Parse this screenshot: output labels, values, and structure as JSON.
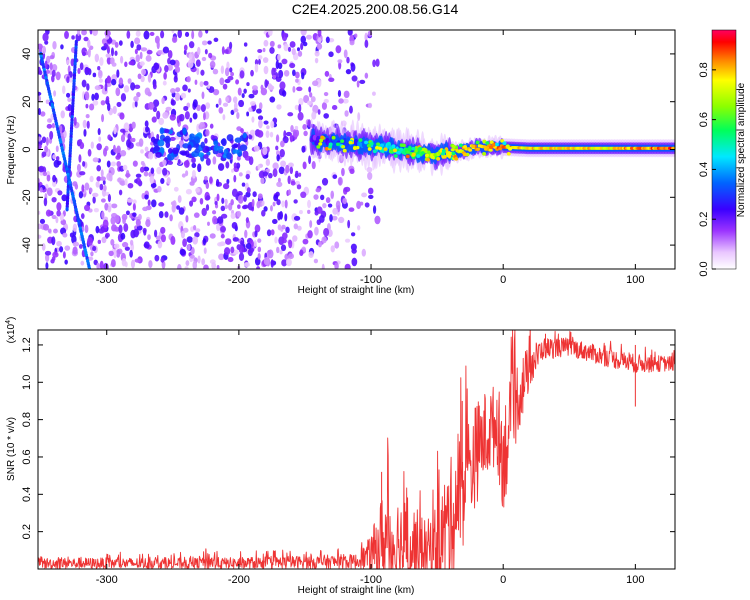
{
  "title": "C2E4.2025.200.08.56.G14",
  "chart_data": [
    {
      "type": "heatmap",
      "xlabel": "Height of straight line (km)",
      "ylabel": "Frequency (Hz)",
      "xlim": [
        -352,
        130
      ],
      "ylim": [
        -50,
        50
      ],
      "x_ticks": [
        -300,
        -200,
        -100,
        0,
        100
      ],
      "y_ticks": [
        -40,
        -20,
        0,
        20,
        40
      ],
      "colorbar": {
        "label": "Normalized spectral amplitude",
        "range": [
          0,
          0.96
        ],
        "ticks": [
          0.0,
          0.2,
          0.4,
          0.6,
          0.8
        ]
      },
      "features": {
        "noise_region_x": [
          -352,
          -110
        ],
        "steep_track": {
          "x_start": -350,
          "y_start": 40,
          "x_end": -313,
          "y_end": -50
        },
        "secondary_track": {
          "x_start": -323,
          "y_start": 45,
          "x_end": -330,
          "y_end": -25
        },
        "cluster_center": {
          "x": -230,
          "y": 2
        },
        "main_band": [
          {
            "x": -145,
            "y": 4,
            "amp": 0.2
          },
          {
            "x": -130,
            "y": 3,
            "amp": 0.3
          },
          {
            "x": -110,
            "y": 2,
            "amp": 0.35
          },
          {
            "x": -90,
            "y": 1,
            "amp": 0.45
          },
          {
            "x": -70,
            "y": -1,
            "amp": 0.6
          },
          {
            "x": -50,
            "y": -2,
            "amp": 0.75
          },
          {
            "x": -35,
            "y": -1,
            "amp": 0.8
          },
          {
            "x": -20,
            "y": 1,
            "amp": 0.85
          },
          {
            "x": 0,
            "y": 1,
            "amp": 0.85
          },
          {
            "x": 20,
            "y": 0.5,
            "amp": 0.8
          },
          {
            "x": 50,
            "y": 0.5,
            "amp": 0.8
          },
          {
            "x": 80,
            "y": 0.5,
            "amp": 0.8
          },
          {
            "x": 100,
            "y": 0.5,
            "amp": 0.85
          },
          {
            "x": 130,
            "y": 0.5,
            "amp": 0.9
          }
        ]
      }
    },
    {
      "type": "line",
      "xlabel": "Height of straight line (km)",
      "ylabel": "SNR (10 * v/v)",
      "scale_label": "(x10",
      "scale_exponent": "4",
      "xlim": [
        -352,
        130
      ],
      "ylim": [
        0,
        1.28
      ],
      "x_ticks": [
        -300,
        -200,
        -100,
        0,
        100
      ],
      "y_ticks": [
        0.2,
        0.4,
        0.6,
        0.8,
        1.0,
        1.2
      ],
      "color": "#ee3333",
      "envelope": [
        {
          "x": -352,
          "base": 0.03,
          "amp": 0.03
        },
        {
          "x": -230,
          "base": 0.03,
          "amp": 0.03
        },
        {
          "x": -225,
          "base": 0.05,
          "amp": 0.06
        },
        {
          "x": -215,
          "base": 0.03,
          "amp": 0.03
        },
        {
          "x": -110,
          "base": 0.04,
          "amp": 0.04
        },
        {
          "x": -100,
          "base": 0.08,
          "amp": 0.1
        },
        {
          "x": -90,
          "base": 0.15,
          "amp": 0.3
        },
        {
          "x": -70,
          "base": 0.12,
          "amp": 0.25
        },
        {
          "x": -58,
          "base": 0.1,
          "amp": 0.15
        },
        {
          "x": -50,
          "base": 0.12,
          "amp": 0.25
        },
        {
          "x": -35,
          "base": 0.35,
          "amp": 0.35
        },
        {
          "x": -25,
          "base": 0.55,
          "amp": 0.3
        },
        {
          "x": -15,
          "base": 0.7,
          "amp": 0.25
        },
        {
          "x": -5,
          "base": 0.78,
          "amp": 0.22
        },
        {
          "x": 0,
          "base": 0.6,
          "amp": 0.3
        },
        {
          "x": 10,
          "base": 0.9,
          "amp": 0.22
        },
        {
          "x": 20,
          "base": 1.08,
          "amp": 0.12
        },
        {
          "x": 30,
          "base": 1.18,
          "amp": 0.06
        },
        {
          "x": 50,
          "base": 1.19,
          "amp": 0.05
        },
        {
          "x": 80,
          "base": 1.13,
          "amp": 0.05
        },
        {
          "x": 100,
          "base": 1.1,
          "amp": 0.05
        },
        {
          "x": 130,
          "base": 1.1,
          "amp": 0.04
        }
      ],
      "spikes": [
        {
          "x": -225,
          "y": 0.11
        },
        {
          "x": -92,
          "y": 0.52
        },
        {
          "x": -31,
          "y": 0.9
        },
        {
          "x": 32,
          "y": 1.26
        },
        {
          "x": 100,
          "y": 1.2
        },
        {
          "x": 100,
          "y": 0.87
        }
      ]
    }
  ]
}
